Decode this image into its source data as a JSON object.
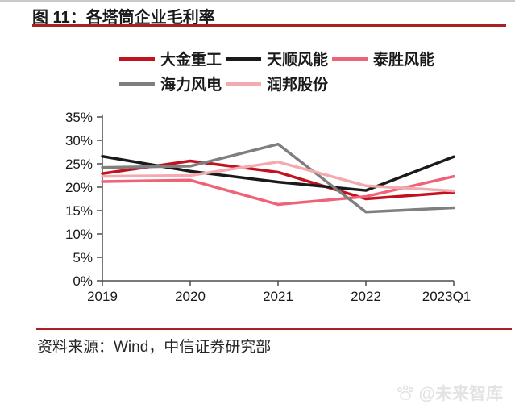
{
  "figure": {
    "title": "图 11：各塔筒企业毛利率",
    "source": "资料来源：Wind，中信证券研究部",
    "watermark": "@未来智库",
    "accent_color": "#A92025",
    "watermark_color": "#E3E3E3"
  },
  "chart_data": {
    "type": "line",
    "title": "各塔筒企业毛利率",
    "categories": [
      "2019",
      "2020",
      "2021",
      "2022",
      "2023Q1"
    ],
    "series": [
      {
        "name": "大金重工",
        "color": "#C1121F",
        "values": [
          22.9,
          25.6,
          23.2,
          17.5,
          18.9
        ]
      },
      {
        "name": "天顺风能",
        "color": "#1A1A1A",
        "values": [
          26.6,
          23.4,
          21.1,
          19.3,
          26.5
        ]
      },
      {
        "name": "泰胜风能",
        "color": "#EE6377",
        "values": [
          21.2,
          21.5,
          16.3,
          18.0,
          22.3
        ]
      },
      {
        "name": "海力风电",
        "color": "#7F7F7F",
        "values": [
          24.2,
          24.5,
          29.2,
          14.7,
          15.6
        ]
      },
      {
        "name": "润邦股份",
        "color": "#F3ABB0",
        "values": [
          22.3,
          22.5,
          25.4,
          20.3,
          19.2
        ]
      }
    ],
    "xlabel": "",
    "ylabel": "",
    "yticks": [
      0,
      5,
      10,
      15,
      20,
      25,
      30,
      35
    ],
    "ytick_suffix": "%",
    "ylim": [
      0,
      35
    ],
    "grid": false,
    "legend_position": "top"
  }
}
